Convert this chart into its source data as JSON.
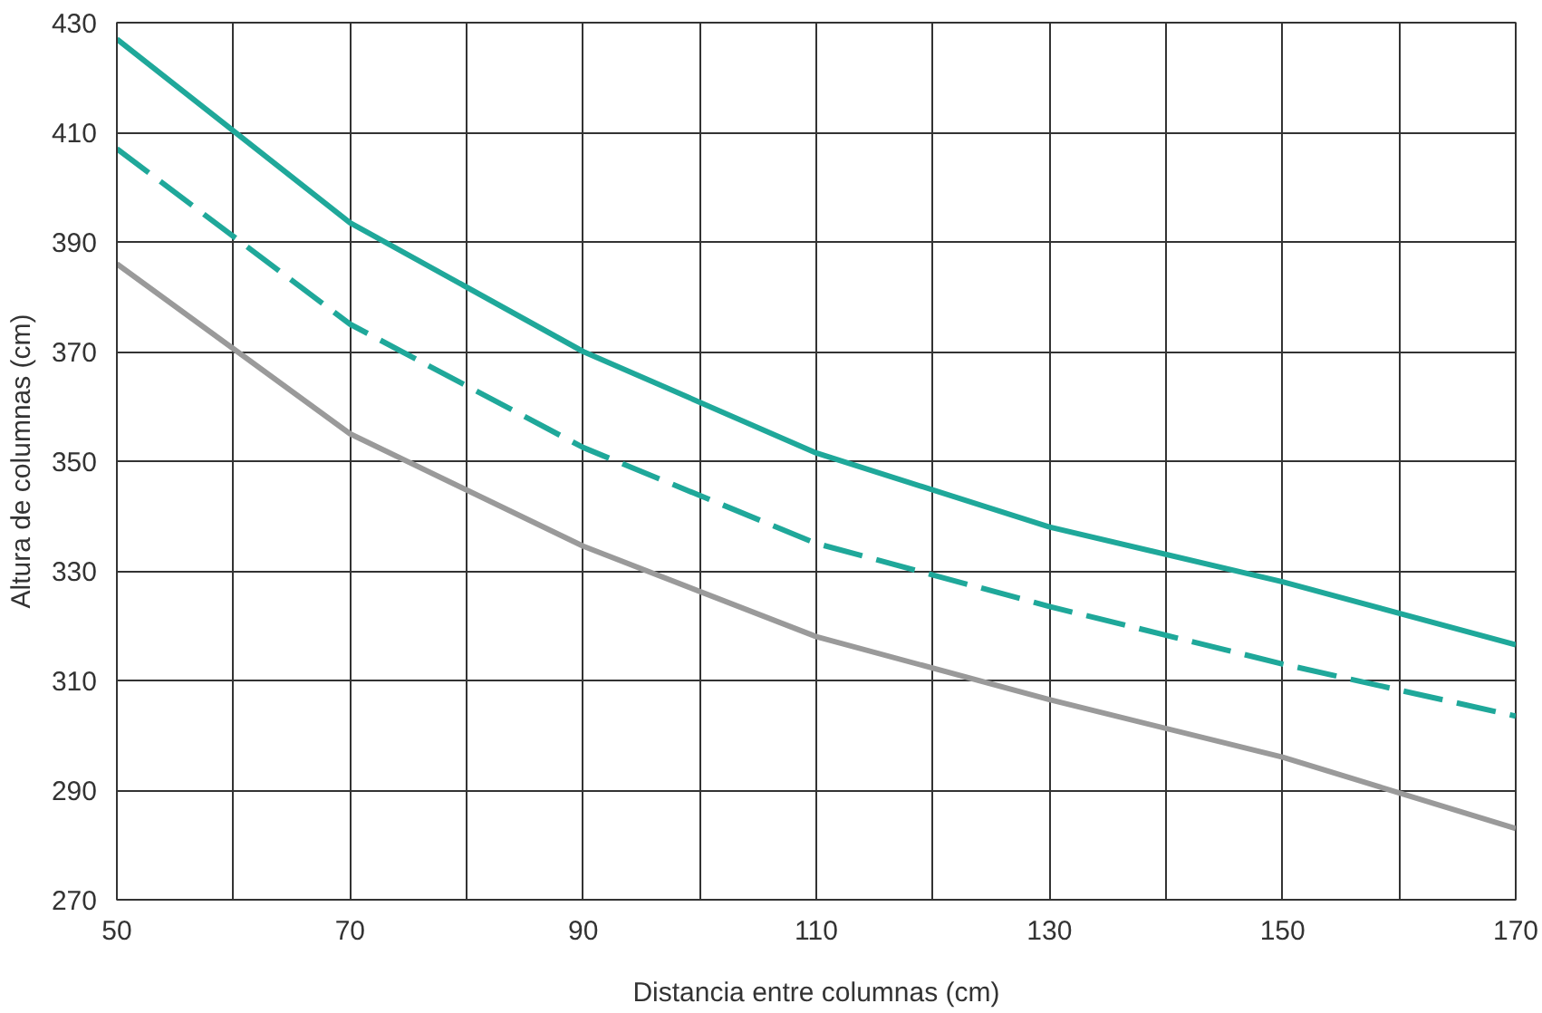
{
  "chart_data": {
    "type": "line",
    "xlabel": "Distancia entre columnas (cm)",
    "ylabel": "Altura de columnas (cm)",
    "x": [
      50,
      70,
      90,
      110,
      130,
      150,
      170
    ],
    "series": [
      {
        "color": "#1fa89a",
        "values": [
          427,
          393.5,
          370,
          351.5,
          338,
          328,
          316.5
        ],
        "line_style": "solid"
      },
      {
        "color": "#1fa89a",
        "values": [
          407,
          375,
          352.5,
          335,
          323.5,
          313,
          303.5
        ],
        "line_style": "dashed"
      },
      {
        "color": "#9a9a9a",
        "values": [
          386,
          355,
          334.5,
          318,
          306.5,
          296,
          283
        ],
        "line_style": "solid"
      }
    ],
    "xlim": [
      50,
      170
    ],
    "ylim": [
      270,
      430
    ],
    "xticks": [
      50,
      {
        "value": 60,
        "label": null
      },
      70,
      {
        "value": 80,
        "label": null
      },
      90,
      {
        "value": 100,
        "label": null
      },
      110,
      {
        "value": 120,
        "label": null
      },
      130,
      {
        "value": 140,
        "label": null
      },
      150,
      {
        "value": 160,
        "label": null
      },
      170
    ],
    "yticks": [
      270,
      290,
      310,
      330,
      350,
      370,
      390,
      410,
      430
    ],
    "grid": true,
    "marker": "none"
  }
}
